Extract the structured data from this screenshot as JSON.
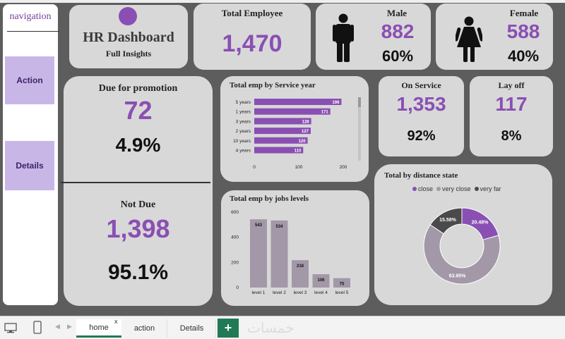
{
  "navigation": {
    "title": "navigation",
    "buttons": [
      {
        "label": "Action"
      },
      {
        "label": "Details"
      }
    ]
  },
  "header": {
    "title": "HR Dashboard",
    "subtitle": "Full Insights"
  },
  "total_employee": {
    "title": "Total Employee",
    "value": "1,470"
  },
  "male": {
    "title": "Male",
    "value": "882",
    "pct": "60%",
    "icon": "male-person-icon"
  },
  "female": {
    "title": "Female",
    "value": "588",
    "pct": "40%",
    "icon": "female-person-icon"
  },
  "promotion": {
    "due_title": "Due for promotion",
    "due_value": "72",
    "due_pct": "4.9%",
    "notdue_title": "Not Due",
    "notdue_value": "1,398",
    "notdue_pct": "95.1%"
  },
  "on_service": {
    "title": "On Service",
    "value": "1,353",
    "pct": "92%"
  },
  "lay_off": {
    "title": "Lay off",
    "value": "117",
    "pct": "8%"
  },
  "colors": {
    "accent": "#8a4fb3",
    "bar_service": "#8a4fb3",
    "bar_levels": "#a398a8",
    "dark": "#4a4a4a"
  },
  "charts": [
    {
      "type": "bar",
      "orientation": "horizontal",
      "title": "Total emp by Service year",
      "categories": [
        "5 years",
        "1 years",
        "3 years",
        "2 years",
        "10 years",
        "4 years"
      ],
      "values": [
        196,
        171,
        128,
        127,
        120,
        110
      ],
      "xlim": [
        0,
        200
      ],
      "xticks": [
        "0",
        "100",
        "200"
      ]
    },
    {
      "type": "bar",
      "title": "Total emp by jobs levels",
      "categories": [
        "level 1",
        "level 2",
        "level 3",
        "level 4",
        "level 5"
      ],
      "values": [
        543,
        534,
        218,
        106,
        75
      ],
      "ylim": [
        0,
        600
      ],
      "yticks": [
        "0",
        "200",
        "400",
        "600"
      ]
    },
    {
      "type": "pie",
      "title": "Total by distance state",
      "legend_position": "top",
      "slices": [
        {
          "name": "close",
          "value": 20.48,
          "label": "20.48%",
          "color": "#8a4fb3"
        },
        {
          "name": "very close",
          "value": 63.95,
          "label": "63.95%",
          "color": "#a398a8"
        },
        {
          "name": "very far",
          "value": 15.58,
          "label": "15.58%",
          "color": "#4a4a4a"
        }
      ]
    }
  ],
  "bottom_tabs": {
    "home": "home",
    "action": "action",
    "details": "Details",
    "add": "+",
    "close": "x",
    "watermark": "خمسات"
  }
}
